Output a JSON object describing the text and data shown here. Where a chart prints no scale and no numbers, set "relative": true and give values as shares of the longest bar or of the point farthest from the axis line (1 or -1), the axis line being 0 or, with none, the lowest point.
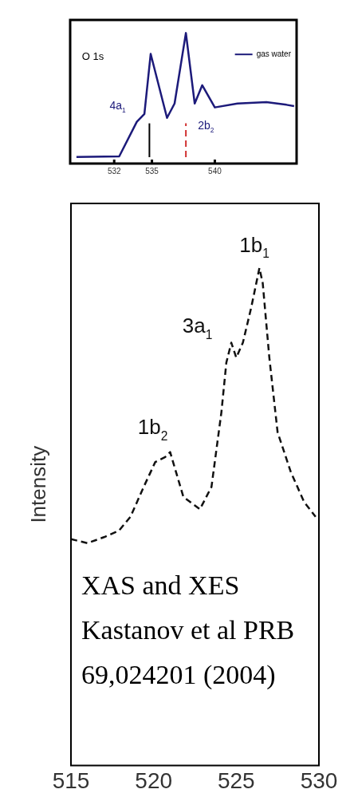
{
  "chart_data": [
    {
      "type": "line",
      "relative": true,
      "x": [
        529.0,
        532.4,
        533.8,
        534.4,
        534.9,
        536.2,
        536.8,
        537.7,
        538.4,
        539.0,
        540.0,
        541.8,
        544.1,
        545.7,
        546.3
      ],
      "series": [
        {
          "name": "gas water",
          "color": "#1c1a7a",
          "values": [
            0.05,
            0.055,
            0.32,
            0.38,
            0.84,
            0.35,
            0.46,
            1,
            0.46,
            0.6,
            0.43,
            0.46,
            0.47,
            0.45,
            0.44
          ]
        }
      ],
      "xlim": [
        528.5,
        546.5
      ],
      "xticks": [
        532,
        535,
        540
      ],
      "tick_labels": "x",
      "grid": false,
      "legend": "top right",
      "marker": "none",
      "line_style": "solid",
      "ref_lines": [
        {
          "axis": "x",
          "value": 534.8,
          "color": "#000000",
          "line_style": "solid"
        },
        {
          "axis": "x",
          "value": 537.7,
          "color": "#d03030",
          "line_style": "dashed"
        }
      ],
      "annotations": [
        "O 1s",
        "4a$_{1}$",
        "2b$_{2}$"
      ]
    },
    {
      "type": "line",
      "relative": true,
      "ylabel": "Intensity",
      "x": [
        515.0,
        516.0,
        517.0,
        517.9,
        518.6,
        519.4,
        520.1,
        520.7,
        521.0,
        521.8,
        522.8,
        523.5,
        524.1,
        524.4,
        524.7,
        525.0,
        525.4,
        525.9,
        526.4,
        526.6,
        527.0,
        527.5,
        528.3,
        529.1,
        529.8
      ],
      "series": [
        {
          "color": "#111111",
          "values": [
            0.455,
            0.447,
            0.459,
            0.472,
            0.5,
            0.56,
            0.61,
            0.62,
            0.63,
            0.54,
            0.515,
            0.56,
            0.71,
            0.81,
            0.85,
            0.82,
            0.85,
            0.92,
            1,
            0.97,
            0.82,
            0.67,
            0.59,
            0.53,
            0.5
          ]
        }
      ],
      "xlim": [
        515,
        530
      ],
      "xticks": [
        515,
        520,
        525,
        530
      ],
      "tick_labels": "x",
      "grid": false,
      "legend": false,
      "marker": "none",
      "line_style": "dashed",
      "annotations": [
        "1b$_{2}$",
        "3a$_{1}$",
        "1b$_{1}$",
        "XAS and XES Kastanov et al PRB 69,024201 (2004)"
      ]
    }
  ]
}
